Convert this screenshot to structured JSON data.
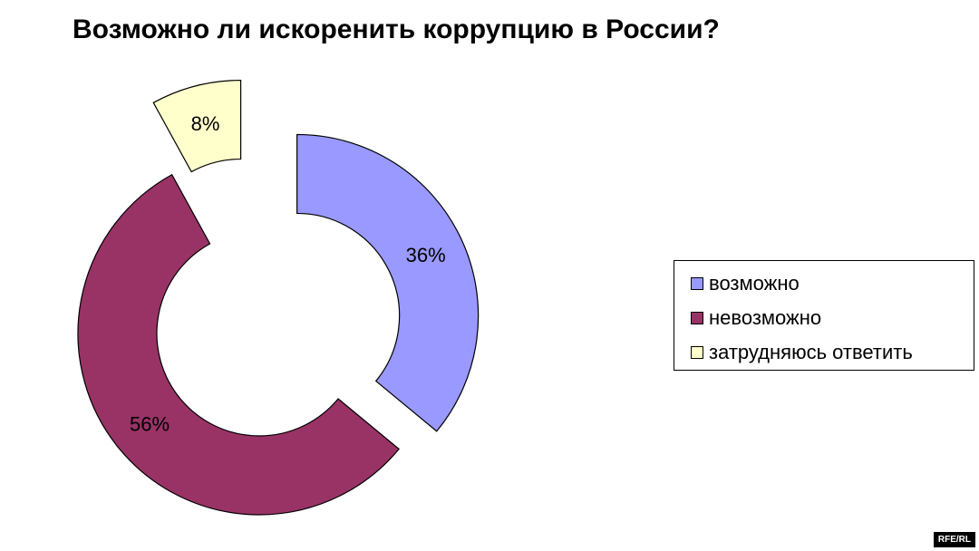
{
  "chart_data": {
    "type": "pie",
    "variant": "exploded-doughnut",
    "title": "Возможно ли искоренить коррупцию в России?",
    "categories": [
      "возможно",
      "невозможно",
      "затрудняюсь ответить"
    ],
    "values": [
      36,
      56,
      8
    ],
    "labels": [
      "36%",
      "56%",
      "8%"
    ],
    "colors": [
      "#9999ff",
      "#993366",
      "#ffffcc"
    ],
    "legend_position": "right"
  },
  "watermark": "RFE/RL"
}
